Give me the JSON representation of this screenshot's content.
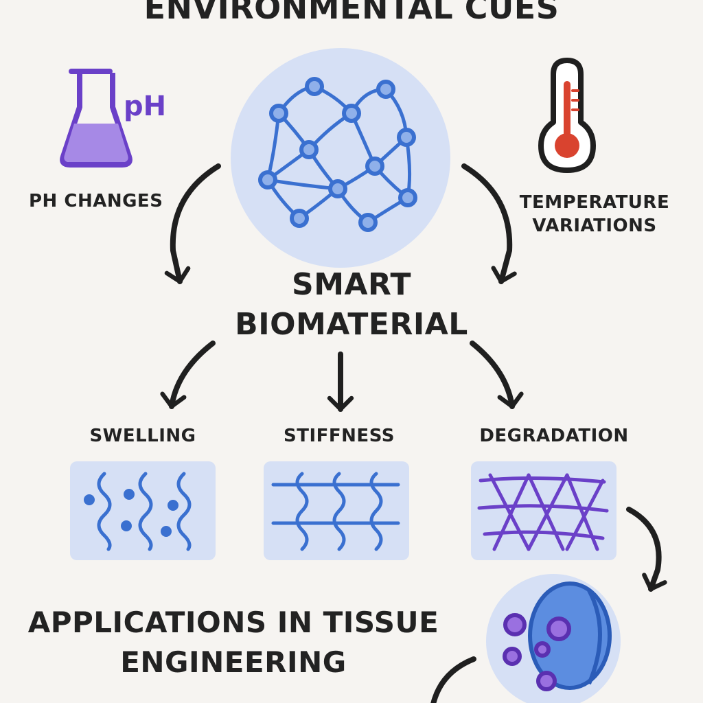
{
  "diagram": {
    "title": "ENVIRONMENTAL CUES",
    "center": "SMART BIOMATERIAL",
    "inputs": {
      "ph_symbol": "pH",
      "ph_label": "PH CHANGES",
      "temperature_label": "TEMPERATURE VARIATIONS"
    },
    "responses": {
      "swelling": "SWELLING",
      "stiffness": "STIFFNESS",
      "degradation": "DEGRADATION"
    },
    "applications": "APPLICATIONS IN TISSUE ENGINEERING",
    "icons": [
      "flask-icon",
      "thermometer-icon",
      "polymer-network-icon",
      "swelling-icon",
      "stiffness-icon",
      "degradation-icon",
      "cell-icon"
    ],
    "colors": {
      "background": "#f6f4f1",
      "panel": "#d6e0f5",
      "network_blue": "#3a70d0",
      "purple": "#6a40c8",
      "red": "#d9432f",
      "arrow": "#1f1f1f"
    }
  }
}
